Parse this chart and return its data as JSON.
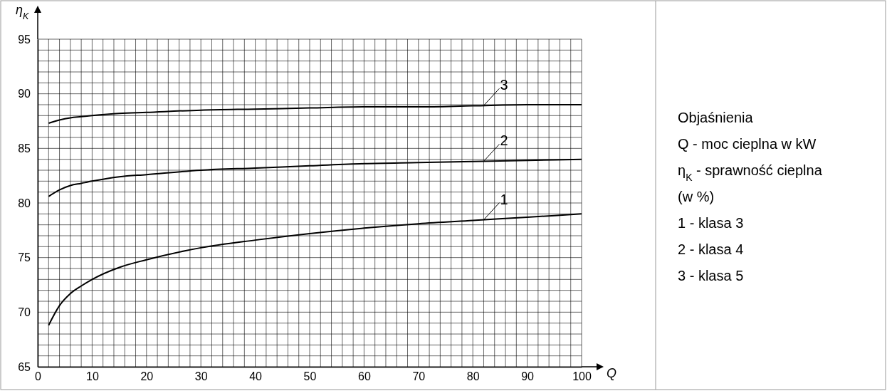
{
  "chart_data": {
    "type": "line",
    "xlabel": "Q",
    "ylabel": "η$_{K}$",
    "x": [
      2,
      4,
      6,
      8,
      10,
      15,
      20,
      30,
      40,
      50,
      60,
      70,
      80,
      90,
      100
    ],
    "series": [
      {
        "name": "1",
        "color": "#000000",
        "values": [
          68.8,
          70.6,
          71.7,
          72.4,
          73,
          74.1,
          74.8,
          75.9,
          76.6,
          77.2,
          77.7,
          78.1,
          78.4,
          78.7,
          79
        ]
      },
      {
        "name": "2",
        "color": "#000000",
        "values": [
          80.6,
          81.2,
          81.6,
          81.8,
          82,
          82.4,
          82.6,
          83,
          83.2,
          83.4,
          83.6,
          83.7,
          83.8,
          83.9,
          84
        ]
      },
      {
        "name": "3",
        "color": "#000000",
        "values": [
          87.3,
          87.6,
          87.8,
          87.9,
          88,
          88.2,
          88.3,
          88.5,
          88.6,
          88.7,
          88.8,
          88.8,
          88.9,
          89,
          89
        ]
      }
    ],
    "xlim": [
      0,
      100
    ],
    "xticks": [
      0,
      {
        "value": 2,
        "label": null
      },
      {
        "value": 4,
        "label": null
      },
      {
        "value": 6,
        "label": null
      },
      {
        "value": 8,
        "label": null
      },
      10,
      {
        "value": 12,
        "label": null
      },
      {
        "value": 14,
        "label": null
      },
      {
        "value": 16,
        "label": null
      },
      {
        "value": 18,
        "label": null
      },
      20,
      {
        "value": 22,
        "label": null
      },
      {
        "value": 24,
        "label": null
      },
      {
        "value": 26,
        "label": null
      },
      {
        "value": 28,
        "label": null
      },
      30,
      {
        "value": 32,
        "label": null
      },
      {
        "value": 34,
        "label": null
      },
      {
        "value": 36,
        "label": null
      },
      {
        "value": 38,
        "label": null
      },
      40,
      {
        "value": 42,
        "label": null
      },
      {
        "value": 44,
        "label": null
      },
      {
        "value": 46,
        "label": null
      },
      {
        "value": 48,
        "label": null
      },
      50,
      {
        "value": 52,
        "label": null
      },
      {
        "value": 54,
        "label": null
      },
      {
        "value": 56,
        "label": null
      },
      {
        "value": 58,
        "label": null
      },
      60,
      {
        "value": 62,
        "label": null
      },
      {
        "value": 64,
        "label": null
      },
      {
        "value": 66,
        "label": null
      },
      {
        "value": 68,
        "label": null
      },
      70,
      {
        "value": 72,
        "label": null
      },
      {
        "value": 74,
        "label": null
      },
      {
        "value": 76,
        "label": null
      },
      {
        "value": 78,
        "label": null
      },
      80,
      {
        "value": 82,
        "label": null
      },
      {
        "value": 84,
        "label": null
      },
      {
        "value": 86,
        "label": null
      },
      {
        "value": 88,
        "label": null
      },
      90,
      {
        "value": 92,
        "label": null
      },
      {
        "value": 94,
        "label": null
      },
      {
        "value": 96,
        "label": null
      },
      {
        "value": 98,
        "label": null
      },
      100
    ],
    "ylim": [
      65,
      95
    ],
    "yticks": [
      65,
      {
        "value": 66,
        "label": null
      },
      {
        "value": 67,
        "label": null
      },
      {
        "value": 68,
        "label": null
      },
      {
        "value": 69,
        "label": null
      },
      70,
      {
        "value": 71,
        "label": null
      },
      {
        "value": 72,
        "label": null
      },
      {
        "value": 73,
        "label": null
      },
      {
        "value": 74,
        "label": null
      },
      75,
      {
        "value": 76,
        "label": null
      },
      {
        "value": 77,
        "label": null
      },
      {
        "value": 78,
        "label": null
      },
      {
        "value": 79,
        "label": null
      },
      80,
      {
        "value": 81,
        "label": null
      },
      {
        "value": 82,
        "label": null
      },
      {
        "value": 83,
        "label": null
      },
      {
        "value": 84,
        "label": null
      },
      85,
      {
        "value": 86,
        "label": null
      },
      {
        "value": 87,
        "label": null
      },
      {
        "value": 88,
        "label": null
      },
      {
        "value": 89,
        "label": null
      },
      90,
      {
        "value": 91,
        "label": null
      },
      {
        "value": 92,
        "label": null
      },
      {
        "value": 93,
        "label": null
      },
      {
        "value": 94,
        "label": null
      },
      95
    ],
    "grid": true,
    "marker": "none",
    "line_style": "solid",
    "annotations": [
      "Objaśnienia",
      "Q - moc cieplna w kW",
      "η$_{K}$ - sprawność cieplna",
      "(w %)",
      "1 - klasa 3",
      "2 - klasa 4",
      "3 - klasa 5"
    ]
  }
}
